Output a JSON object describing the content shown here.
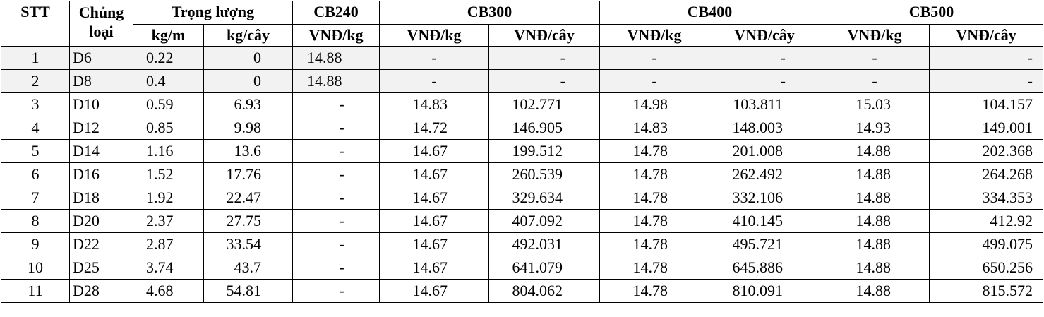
{
  "header": {
    "stt": "STT",
    "chung_loai_1": "Chủng",
    "chung_loai_2": "loại",
    "trong_luong": "Trọng lượng",
    "kg_m": "kg/m",
    "kg_cay": "kg/cây",
    "cb240": "CB240",
    "cb300": "CB300",
    "cb400": "CB400",
    "cb500": "CB500",
    "vnd_kg": "VNĐ/kg",
    "vnd_cay": "VNĐ/cây"
  },
  "rows": [
    {
      "stt": "1",
      "type": "D6",
      "kgm": "0.22",
      "kgcay": "0",
      "cb240": "14.88",
      "cb300kg": "-",
      "cb300cay": "-",
      "cb400kg": "-",
      "cb400cay": "-",
      "cb500kg": "-",
      "cb500cay": "-"
    },
    {
      "stt": "2",
      "type": "D8",
      "kgm": "0.4",
      "kgcay": "0",
      "cb240": "14.88",
      "cb300kg": "-",
      "cb300cay": "-",
      "cb400kg": "-",
      "cb400cay": "-",
      "cb500kg": "-",
      "cb500cay": "-"
    },
    {
      "stt": "3",
      "type": "D10",
      "kgm": "0.59",
      "kgcay": "6.93",
      "cb240": "-",
      "cb300kg": "14.83",
      "cb300cay": "102.771",
      "cb400kg": "14.98",
      "cb400cay": "103.811",
      "cb500kg": "15.03",
      "cb500cay": "104.157"
    },
    {
      "stt": "4",
      "type": "D12",
      "kgm": "0.85",
      "kgcay": "9.98",
      "cb240": "-",
      "cb300kg": "14.72",
      "cb300cay": "146.905",
      "cb400kg": "14.83",
      "cb400cay": "148.003",
      "cb500kg": "14.93",
      "cb500cay": "149.001"
    },
    {
      "stt": "5",
      "type": "D14",
      "kgm": "1.16",
      "kgcay": "13.6",
      "cb240": "-",
      "cb300kg": "14.67",
      "cb300cay": "199.512",
      "cb400kg": "14.78",
      "cb400cay": "201.008",
      "cb500kg": "14.88",
      "cb500cay": "202.368"
    },
    {
      "stt": "6",
      "type": "D16",
      "kgm": "1.52",
      "kgcay": "17.76",
      "cb240": "-",
      "cb300kg": "14.67",
      "cb300cay": "260.539",
      "cb400kg": "14.78",
      "cb400cay": "262.492",
      "cb500kg": "14.88",
      "cb500cay": "264.268"
    },
    {
      "stt": "7",
      "type": "D18",
      "kgm": "1.92",
      "kgcay": "22.47",
      "cb240": "-",
      "cb300kg": "14.67",
      "cb300cay": "329.634",
      "cb400kg": "14.78",
      "cb400cay": "332.106",
      "cb500kg": "14.88",
      "cb500cay": "334.353"
    },
    {
      "stt": "8",
      "type": "D20",
      "kgm": "2.37",
      "kgcay": "27.75",
      "cb240": "-",
      "cb300kg": "14.67",
      "cb300cay": "407.092",
      "cb400kg": "14.78",
      "cb400cay": "410.145",
      "cb500kg": "14.88",
      "cb500cay": "412.92"
    },
    {
      "stt": "9",
      "type": "D22",
      "kgm": "2.87",
      "kgcay": "33.54",
      "cb240": "-",
      "cb300kg": "14.67",
      "cb300cay": "492.031",
      "cb400kg": "14.78",
      "cb400cay": "495.721",
      "cb500kg": "14.88",
      "cb500cay": "499.075"
    },
    {
      "stt": "10",
      "type": "D25",
      "kgm": "3.74",
      "kgcay": "43.7",
      "cb240": "-",
      "cb300kg": "14.67",
      "cb300cay": "641.079",
      "cb400kg": "14.78",
      "cb400cay": "645.886",
      "cb500kg": "14.88",
      "cb500cay": "650.256"
    },
    {
      "stt": "11",
      "type": "D28",
      "kgm": "4.68",
      "kgcay": "54.81",
      "cb240": "-",
      "cb300kg": "14.67",
      "cb300cay": "804.062",
      "cb400kg": "14.78",
      "cb400cay": "810.091",
      "cb500kg": "14.88",
      "cb500cay": "815.572"
    }
  ]
}
